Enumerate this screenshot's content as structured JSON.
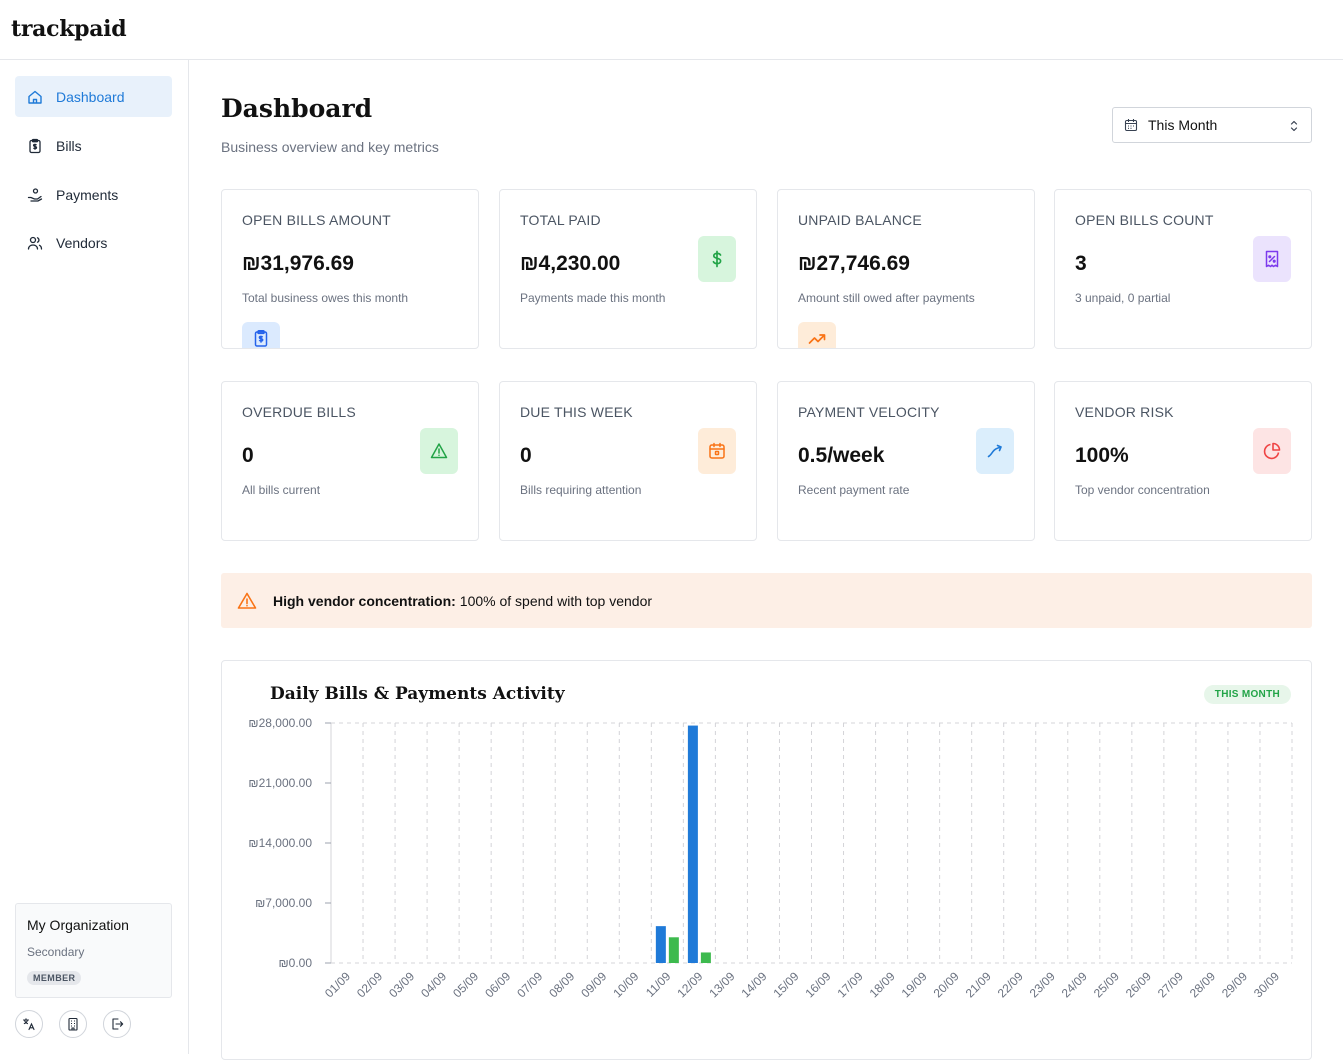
{
  "app": {
    "logo": "trackpaid"
  },
  "sidebar": {
    "items": [
      {
        "label": "Dashboard",
        "icon": "home-icon",
        "active": true
      },
      {
        "label": "Bills",
        "icon": "clipboard-dollar-icon",
        "active": false
      },
      {
        "label": "Payments",
        "icon": "hand-coins-icon",
        "active": false
      },
      {
        "label": "Vendors",
        "icon": "users-icon",
        "active": false
      }
    ],
    "org": {
      "name": "My Organization",
      "subtitle": "Secondary",
      "badge": "MEMBER"
    },
    "footer_icons": [
      "translate-icon",
      "building-icon",
      "logout-icon"
    ]
  },
  "header": {
    "title": "Dashboard",
    "subtitle": "Business overview and key metrics",
    "period": "This Month"
  },
  "cards": [
    {
      "title": "OPEN BILLS AMOUNT",
      "value": "₪31,976.69",
      "desc": "Total business owes this month",
      "icon": "clipboard-dollar-icon",
      "color": "#2563eb",
      "bg": "#dbeafe"
    },
    {
      "title": "TOTAL PAID",
      "value": "₪4,230.00",
      "desc": "Payments made this month",
      "icon": "dollar-icon",
      "color": "#22a447",
      "bg": "#d7f5dd"
    },
    {
      "title": "UNPAID BALANCE",
      "value": "₪27,746.69",
      "desc": "Amount still owed after payments",
      "icon": "trending-up-icon",
      "color": "#f97316",
      "bg": "#feecd9"
    },
    {
      "title": "OPEN BILLS COUNT",
      "value": "3",
      "desc": "3 unpaid, 0 partial",
      "icon": "receipt-icon",
      "color": "#7c3aed",
      "bg": "#ebe3fd"
    },
    {
      "title": "OVERDUE BILLS",
      "value": "0",
      "desc": "All bills current",
      "icon": "warning-icon",
      "color": "#22a447",
      "bg": "#d7f5dd"
    },
    {
      "title": "DUE THIS WEEK",
      "value": "0",
      "desc": "Bills requiring attention",
      "icon": "calendar-icon",
      "color": "#f97316",
      "bg": "#feecd9"
    },
    {
      "title": "PAYMENT VELOCITY",
      "value": "0.5/week",
      "desc": "Recent payment rate",
      "icon": "trend-arrow-icon",
      "color": "#1f7ad8",
      "bg": "#dbeefc"
    },
    {
      "title": "VENDOR RISK",
      "value": "100%",
      "desc": "Top vendor concentration",
      "icon": "pie-chart-icon",
      "color": "#ef4444",
      "bg": "#fde4e4"
    }
  ],
  "alert": {
    "bold": "High vendor concentration:",
    "text": "100% of spend with top vendor",
    "icon": "warning-icon"
  },
  "chart_data": {
    "type": "bar",
    "title": "Daily Bills & Payments Activity",
    "badge": "THIS MONTH",
    "categories": [
      "01/09",
      "02/09",
      "03/09",
      "04/09",
      "05/09",
      "06/09",
      "07/09",
      "08/09",
      "09/09",
      "10/09",
      "11/09",
      "12/09",
      "13/09",
      "14/09",
      "15/09",
      "16/09",
      "17/09",
      "18/09",
      "19/09",
      "20/09",
      "21/09",
      "22/09",
      "23/09",
      "24/09",
      "25/09",
      "26/09",
      "27/09",
      "28/09",
      "29/09",
      "30/09"
    ],
    "series": [
      {
        "color": "#1f7ad8",
        "values": [
          0,
          0,
          0,
          0,
          0,
          0,
          0,
          0,
          0,
          0,
          4300,
          27700,
          0,
          0,
          0,
          0,
          0,
          0,
          0,
          0,
          0,
          0,
          0,
          0,
          0,
          0,
          0,
          0,
          0,
          0
        ]
      },
      {
        "color": "#3dba4e",
        "values": [
          0,
          0,
          0,
          0,
          0,
          0,
          0,
          0,
          0,
          0,
          3000,
          1230,
          0,
          0,
          0,
          0,
          0,
          0,
          0,
          0,
          0,
          0,
          0,
          0,
          0,
          0,
          0,
          0,
          0,
          0
        ]
      }
    ],
    "yticks": [
      0,
      7000,
      14000,
      21000,
      28000
    ],
    "ytick_labels": [
      "₪0.00",
      "₪7,000.00",
      "₪14,000.00",
      "₪21,000.00",
      "₪28,000.00"
    ],
    "ylim": [
      0,
      28000
    ],
    "grid": true
  }
}
